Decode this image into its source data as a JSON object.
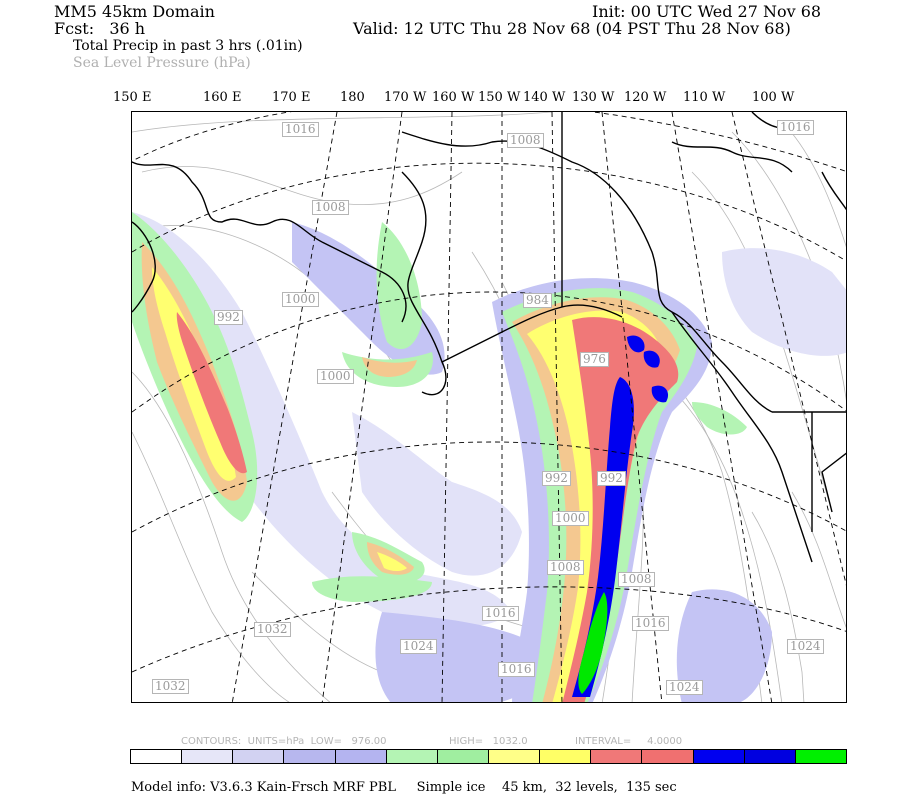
{
  "header": {
    "domain": "MM5 45km Domain",
    "fcst_label": "Fcst:",
    "fcst_value": "36 h",
    "init": "Init: 00 UTC Wed 27 Nov 68",
    "valid": "Valid: 12 UTC Thu 28 Nov 68 (04 PST Thu 28 Nov 68)",
    "field_precip": "Total Precip in past 3 hrs (.01in)",
    "field_slp": "Sea Level Pressure (hPa)"
  },
  "longitude_labels": [
    "150 E",
    "160 E",
    "170 E",
    "180",
    "170 W",
    "160 W",
    "150 W",
    "140 W",
    "130 W",
    "120 W",
    "110 W",
    "100 W"
  ],
  "isobar_labels": [
    {
      "label": "1016"
    },
    {
      "label": "1008"
    },
    {
      "label": "1016"
    },
    {
      "label": "1008"
    },
    {
      "label": "1000"
    },
    {
      "label": "992"
    },
    {
      "label": "984"
    },
    {
      "label": "976"
    },
    {
      "label": "1000"
    },
    {
      "label": "992"
    },
    {
      "label": "992"
    },
    {
      "label": "1000"
    },
    {
      "label": "1008"
    },
    {
      "label": "1008"
    },
    {
      "label": "1016"
    },
    {
      "label": "1016"
    },
    {
      "label": "1024"
    },
    {
      "label": "1032"
    },
    {
      "label": "1024"
    },
    {
      "label": "1016"
    },
    {
      "label": "1032"
    },
    {
      "label": "1024"
    }
  ],
  "legend": {
    "contours": "CONTOURS:  UNITS=hPa  LOW=   976.00",
    "high": "HIGH=   1032.0",
    "interval": "INTERVAL=     4.0000",
    "colors": [
      "#ffffff",
      "#e6e6f8",
      "#d2d2f2",
      "#b7b7ee",
      "#b4b4f0",
      "#b4f4b4",
      "#a0eea0",
      "#ffff88",
      "#ffff66",
      "#f07878",
      "#f07070",
      "#0000f0",
      "#0000e0",
      "#00f000"
    ]
  },
  "colors": {
    "lavender_light": "#e2e2f8",
    "lavender": "#c4c4f4",
    "blue_violet": "#a8a8f0",
    "green_light": "#b4f4b4",
    "peach": "#f4c890",
    "yellow": "#ffff70",
    "salmon": "#f07878",
    "blue": "#0000f0",
    "green": "#00e800"
  },
  "model_info": "Model info: V3.6.3 Kain-Frsch MRF PBL     Simple ice    45 km,  32 levels,  135 sec"
}
